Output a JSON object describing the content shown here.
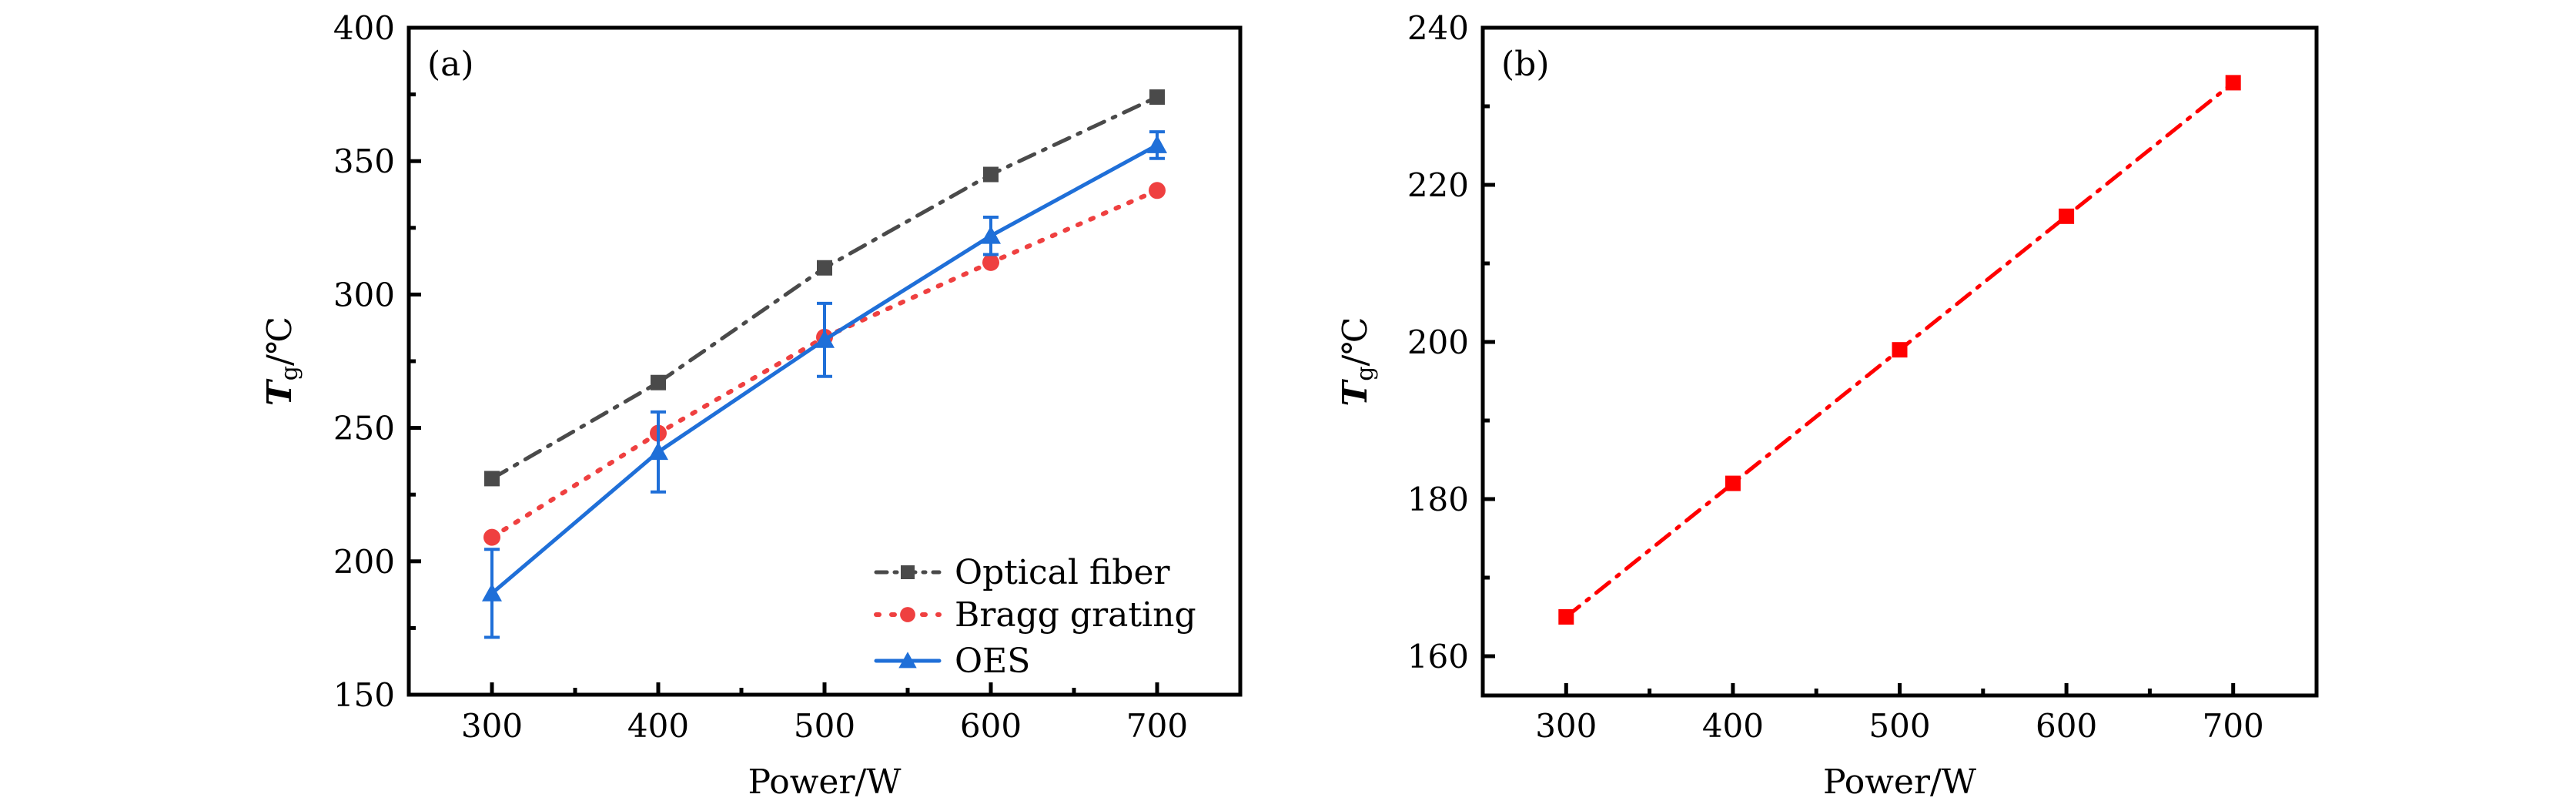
{
  "chart_data": [
    {
      "type": "line",
      "panel_label": "(a)",
      "xlabel": "Power/W",
      "ylabel": {
        "main": "T",
        "sub": "g",
        "unit": "/℃"
      },
      "xlim": [
        250,
        750
      ],
      "ylim": [
        150,
        400
      ],
      "x_ticks": [
        300,
        400,
        500,
        600,
        700
      ],
      "x_minor_ticks": [
        350,
        450,
        550,
        650
      ],
      "y_ticks": [
        150,
        200,
        250,
        300,
        350,
        400
      ],
      "y_minor_ticks": [
        175,
        225,
        275,
        325,
        375
      ],
      "x_tick_labels": [
        "300",
        "400",
        "500",
        "600",
        "700"
      ],
      "y_tick_labels": [
        "150",
        "200",
        "250",
        "300",
        "350",
        "400"
      ],
      "grid": false,
      "legend_position": "bottom-right",
      "x": [
        300,
        400,
        500,
        600,
        700
      ],
      "series": [
        {
          "name": "Optical fiber",
          "color": "#4a4a4a",
          "marker": "square",
          "line_style": "dash-dot",
          "values": [
            231,
            267,
            310,
            345,
            374
          ]
        },
        {
          "name": "Bragg grating",
          "color": "#ef4040",
          "marker": "circle",
          "line_style": "dotted",
          "values": [
            209,
            248,
            284,
            312,
            339
          ]
        },
        {
          "name": "OES",
          "color": "#1f6fd8",
          "marker": "triangle",
          "line_style": "solid",
          "values": [
            188,
            241,
            283,
            322,
            356
          ],
          "error": [
            16.5,
            15,
            13.7,
            7,
            5
          ]
        }
      ]
    },
    {
      "type": "line",
      "panel_label": "(b)",
      "xlabel": "Power/W",
      "ylabel": {
        "main": "T",
        "sub": "g",
        "unit": "/℃"
      },
      "xlim": [
        250,
        750
      ],
      "ylim": [
        155,
        240
      ],
      "x_ticks": [
        300,
        400,
        500,
        600,
        700
      ],
      "x_minor_ticks": [
        350,
        450,
        550,
        650
      ],
      "y_ticks": [
        160,
        180,
        200,
        220,
        240
      ],
      "y_minor_ticks": [
        170,
        190,
        210,
        230
      ],
      "x_tick_labels": [
        "300",
        "400",
        "500",
        "600",
        "700"
      ],
      "y_tick_labels": [
        "160",
        "180",
        "200",
        "220",
        "240"
      ],
      "grid": false,
      "x": [
        300,
        400,
        500,
        600,
        700
      ],
      "series": [
        {
          "name": "Tg",
          "color": "#ff0000",
          "marker": "square",
          "line_style": "dash-dot",
          "values": [
            165,
            182,
            199,
            216,
            233
          ]
        }
      ]
    }
  ]
}
